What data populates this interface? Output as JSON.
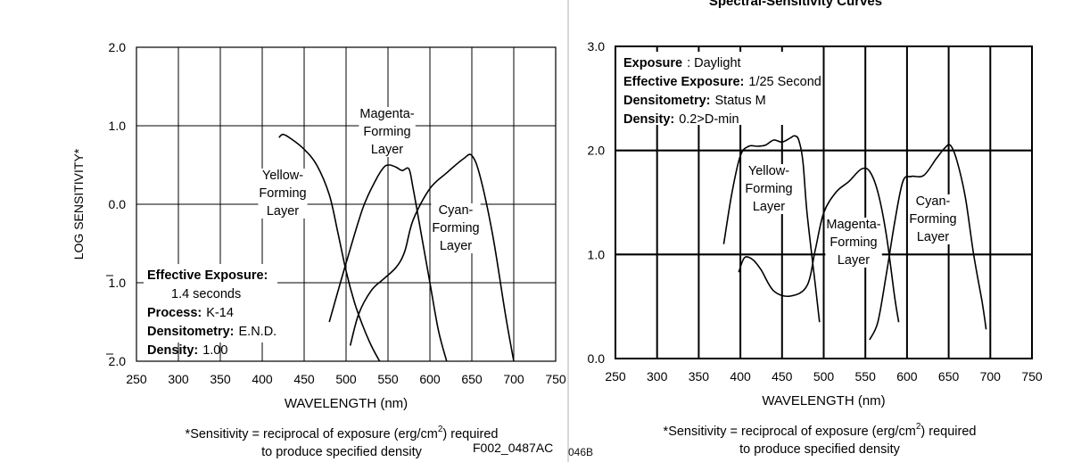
{
  "page": {
    "right_title_fragment": "Spectral-Sensitivity Curves",
    "left_code": "F002_0487AC",
    "right_code_fragment": "046B"
  },
  "chart_data": [
    {
      "type": "line",
      "title": "",
      "xlabel": "WAVELENGTH (nm)",
      "ylabel": "LOG SENSITIVITY*",
      "xlim": [
        250,
        750
      ],
      "ylim": [
        -2,
        2
      ],
      "x_ticks": [
        250,
        300,
        350,
        400,
        450,
        500,
        550,
        600,
        650,
        700,
        750
      ],
      "y_ticks": [
        2,
        1,
        0,
        -1,
        -2
      ],
      "y_tick_labels": [
        "2.0",
        "1.0",
        "0.0",
        "1.0",
        "2.0"
      ],
      "y_tick_bar_over": [
        false,
        false,
        false,
        true,
        true
      ],
      "grid": true,
      "series": [
        {
          "name": "Yellow-Forming Layer",
          "label_lines": [
            "Yellow-",
            "Forming",
            "Layer"
          ],
          "x": [
            420,
            425,
            435,
            450,
            465,
            480,
            490,
            500,
            510,
            520,
            530,
            540
          ],
          "y": [
            0.85,
            0.89,
            0.83,
            0.7,
            0.5,
            0.12,
            -0.35,
            -0.85,
            -1.25,
            -1.55,
            -1.8,
            -2.0
          ]
        },
        {
          "name": "Magenta-Forming Layer",
          "label_lines": [
            "Magenta-",
            "Forming",
            "Layer"
          ],
          "x": [
            480,
            500,
            520,
            535,
            545,
            552,
            560,
            567,
            575,
            580,
            590,
            600,
            610,
            620
          ],
          "y": [
            -1.5,
            -0.75,
            -0.05,
            0.3,
            0.47,
            0.5,
            0.47,
            0.43,
            0.45,
            0.2,
            -0.4,
            -1.0,
            -1.6,
            -2.0
          ]
        },
        {
          "name": "Cyan-Forming Layer",
          "label_lines": [
            "Cyan-",
            "Forming",
            "Layer"
          ],
          "x": [
            505,
            515,
            530,
            545,
            560,
            570,
            580,
            600,
            620,
            640,
            650,
            660,
            675,
            690,
            700
          ],
          "y": [
            -1.8,
            -1.4,
            -1.1,
            -0.95,
            -0.8,
            -0.6,
            -0.2,
            0.2,
            0.4,
            0.58,
            0.62,
            0.35,
            -0.4,
            -1.4,
            -2.0
          ]
        }
      ],
      "info": [
        {
          "label": "Effective Exposure:",
          "value": ""
        },
        {
          "label": "",
          "value": "1.4 seconds"
        },
        {
          "label": "Process:",
          "value": "K-14"
        },
        {
          "label": "Densitometry:",
          "value": "E.N.D."
        },
        {
          "label": "Density:",
          "value": "1.00"
        }
      ],
      "footnote_1": "*Sensitivity = reciprocal of exposure (erg/cm",
      "footnote_sup": "2",
      "footnote_2": ") required",
      "footnote_3": "to produce specified density"
    },
    {
      "type": "line",
      "title": "Spectral-Sensitivity Curves",
      "xlabel": "WAVELENGTH (nm)",
      "ylabel": "",
      "xlim": [
        250,
        750
      ],
      "ylim": [
        0,
        3
      ],
      "x_ticks": [
        250,
        300,
        350,
        400,
        450,
        500,
        550,
        600,
        650,
        700,
        750
      ],
      "y_ticks": [
        0,
        1,
        2,
        3
      ],
      "y_tick_labels": [
        "0.0",
        "1.0",
        "2.0",
        "3.0"
      ],
      "grid": true,
      "series": [
        {
          "name": "Yellow-Forming Layer",
          "label_lines": [
            "Yellow-",
            "Forming",
            "Layer"
          ],
          "x": [
            380,
            390,
            400,
            410,
            420,
            430,
            440,
            450,
            460,
            465,
            470,
            475,
            480,
            490,
            495
          ],
          "y": [
            1.1,
            1.6,
            1.95,
            2.04,
            2.04,
            2.05,
            2.1,
            2.08,
            2.12,
            2.14,
            2.1,
            1.9,
            1.4,
            0.7,
            0.35
          ]
        },
        {
          "name": "Magenta-Forming Layer",
          "label_lines": [
            "Magenta-",
            "Forming",
            "Layer"
          ],
          "x": [
            398,
            405,
            415,
            425,
            440,
            460,
            480,
            490,
            500,
            515,
            530,
            545,
            555,
            565,
            575,
            585,
            590
          ],
          "y": [
            0.83,
            0.97,
            0.95,
            0.85,
            0.65,
            0.6,
            0.7,
            1.05,
            1.4,
            1.6,
            1.7,
            1.82,
            1.8,
            1.6,
            1.2,
            0.6,
            0.35
          ]
        },
        {
          "name": "Cyan-Forming Layer",
          "label_lines": [
            "Cyan-",
            "Forming",
            "Layer"
          ],
          "x": [
            555,
            565,
            575,
            585,
            595,
            605,
            620,
            635,
            645,
            652,
            660,
            670,
            680,
            690,
            695
          ],
          "y": [
            0.18,
            0.35,
            0.8,
            1.3,
            1.7,
            1.75,
            1.76,
            1.92,
            2.02,
            2.05,
            1.9,
            1.55,
            1.0,
            0.55,
            0.28
          ]
        }
      ],
      "info": [
        {
          "label": "Exposure",
          "value": ": Daylight"
        },
        {
          "label": "Effective Exposure:",
          "value": "1/25 Second"
        },
        {
          "label": "Densitometry:",
          "value": "Status M"
        },
        {
          "label": "Density:",
          "value": "0.2>D-min"
        }
      ],
      "footnote_1": "*Sensitivity = reciprocal of exposure (erg/cm",
      "footnote_sup": "2",
      "footnote_2": ") required",
      "footnote_3": "to produce specified density"
    }
  ]
}
